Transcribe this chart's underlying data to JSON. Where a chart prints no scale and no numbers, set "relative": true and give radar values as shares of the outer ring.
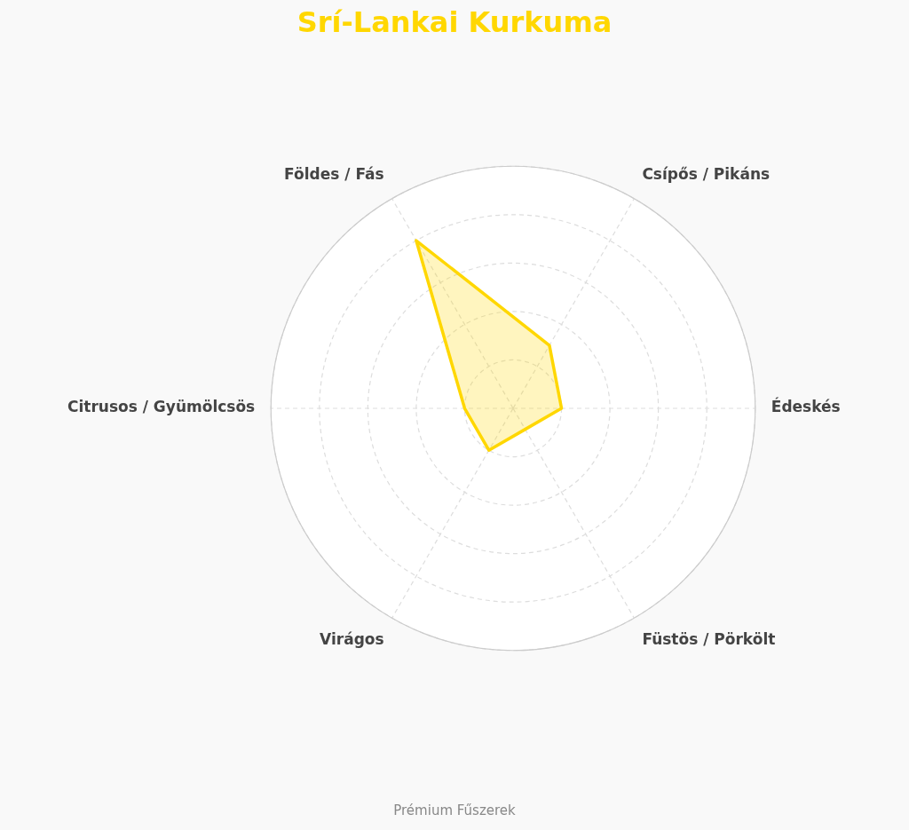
{
  "chart_data": {
    "type": "radar",
    "title": "Srí-Lankai Kurkuma",
    "relative": true,
    "legend": false,
    "grid": true,
    "categories": [
      "Csípős / Pikáns",
      "Édeskés",
      "Füstös / Pörkölt",
      "Virágos",
      "Citrusos / Gyümölcsös",
      "Földes / Fás"
    ],
    "series": [
      {
        "color": "#ffd700",
        "values": [
          0.3,
          0.2,
          0.1,
          0.2,
          0.2,
          0.8
        ]
      }
    ],
    "annotations": [
      "Prémium Fűszerek"
    ]
  }
}
